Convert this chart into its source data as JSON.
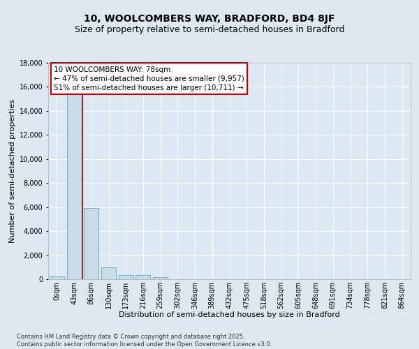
{
  "title_line1": "10, WOOLCOMBERS WAY, BRADFORD, BD4 8JF",
  "title_line2": "Size of property relative to semi-detached houses in Bradford",
  "xlabel": "Distribution of semi-detached houses by size in Bradford",
  "ylabel": "Number of semi-detached properties",
  "bar_color": "#c8dcea",
  "bar_edge_color": "#6aa0c0",
  "vline_color": "#aa0000",
  "annotation_text": "10 WOOLCOMBERS WAY: 78sqm\n← 47% of semi-detached houses are smaller (9,957)\n51% of semi-detached houses are larger (10,711) →",
  "background_color": "#dde8f0",
  "plot_bg_color": "#dde8f5",
  "categories": [
    "0sqm",
    "43sqm",
    "86sqm",
    "130sqm",
    "173sqm",
    "216sqm",
    "259sqm",
    "302sqm",
    "346sqm",
    "389sqm",
    "432sqm",
    "475sqm",
    "518sqm",
    "562sqm",
    "605sqm",
    "648sqm",
    "691sqm",
    "734sqm",
    "778sqm",
    "821sqm",
    "864sqm"
  ],
  "values": [
    230,
    16500,
    5900,
    1000,
    350,
    330,
    150,
    0,
    0,
    0,
    0,
    0,
    0,
    0,
    0,
    0,
    0,
    0,
    0,
    0,
    0
  ],
  "ylim": [
    0,
    18000
  ],
  "yticks": [
    0,
    2000,
    4000,
    6000,
    8000,
    10000,
    12000,
    14000,
    16000,
    18000
  ],
  "vline_x_index": 1.5,
  "footer_text": "Contains HM Land Registry data © Crown copyright and database right 2025.\nContains public sector information licensed under the Open Government Licence v3.0.",
  "title_fontsize": 10,
  "subtitle_fontsize": 9,
  "axis_label_fontsize": 8,
  "tick_fontsize": 7,
  "annotation_fontsize": 7.5
}
